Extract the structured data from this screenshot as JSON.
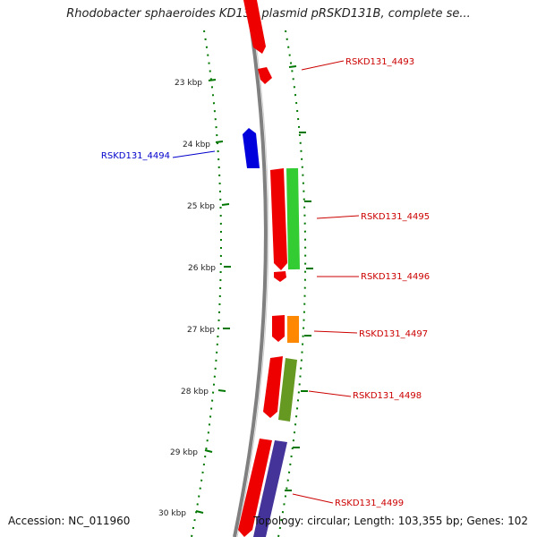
{
  "title": "Rhodobacter sphaeroides KD131 plasmid pRSKD131B, complete se...",
  "footer": {
    "accession": "Accession: NC_011960",
    "topology": "Topology: circular; Length: 103,355 bp; Genes: 102"
  },
  "scale_labels": [
    "23 kbp",
    "24 kbp",
    "25 kbp",
    "26 kbp",
    "27 kbp",
    "28 kbp",
    "29 kbp",
    "30 kbp"
  ],
  "gene_labels": [
    {
      "text": "RSKD131_4493",
      "color": "#cc0000"
    },
    {
      "text": "RSKD131_4494",
      "color": "#0000cc"
    },
    {
      "text": "RSKD131_4495",
      "color": "#cc0000"
    },
    {
      "text": "RSKD131_4496",
      "color": "#cc0000"
    },
    {
      "text": "RSKD131_4497",
      "color": "#cc0000"
    },
    {
      "text": "RSKD131_4498",
      "color": "#cc0000"
    },
    {
      "text": "RSKD131_4499",
      "color": "#cc0000"
    }
  ],
  "colors": {
    "backbone": "#808080",
    "gene_red": "#ee0000",
    "gene_blue": "#0000dd",
    "cog_green": "#33cc33",
    "cog_orange": "#ff8800",
    "cog_olive": "#669922",
    "cog_purple": "#443399",
    "tick": "#007700"
  }
}
